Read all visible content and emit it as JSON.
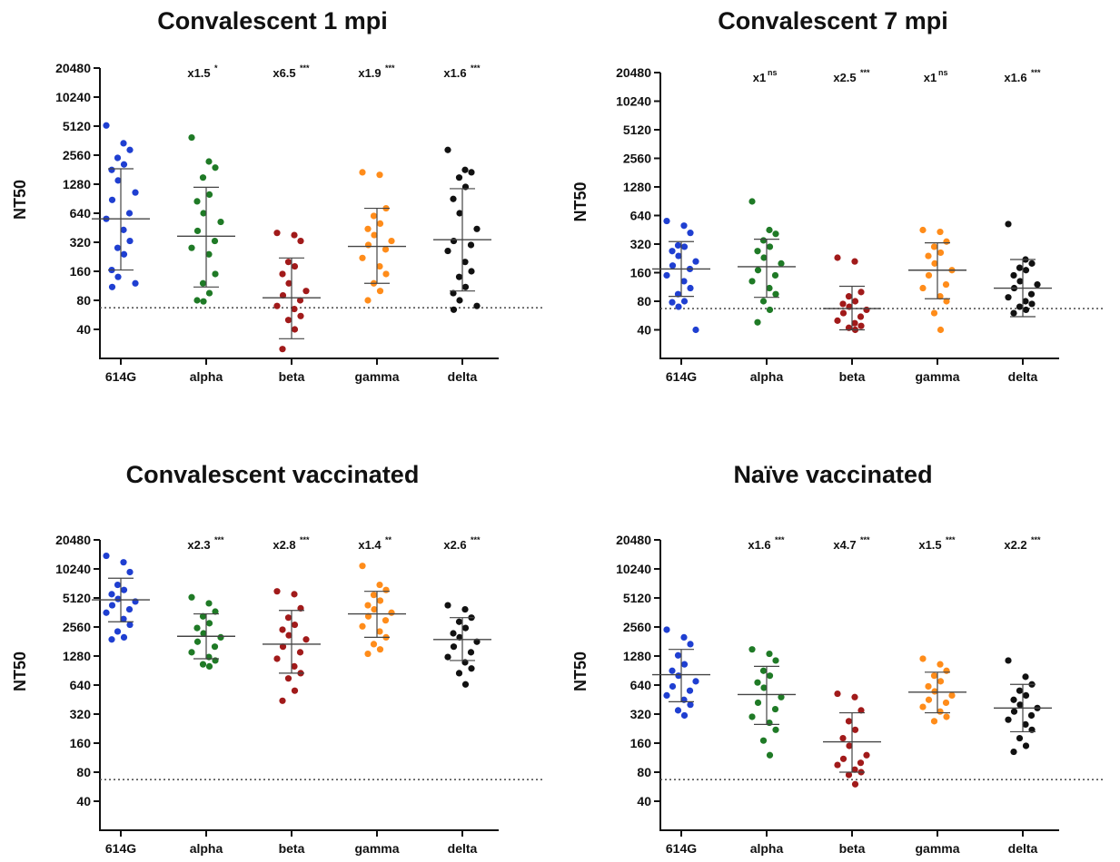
{
  "chart_data": [
    {
      "type": "scatter",
      "title": "Convalescent 1 mpi",
      "ylabel": "NT50",
      "yscale": "log2",
      "ylim": [
        20,
        20480
      ],
      "yticks": [
        "20480",
        "10240",
        "5120",
        "2560",
        "1280",
        "640",
        "320",
        "160",
        "80",
        "40"
      ],
      "categories": [
        "614G",
        "alpha",
        "beta",
        "gamma",
        "delta"
      ],
      "threshold": 67,
      "annotations": [
        {
          "category": "alpha",
          "fold": "x1.5",
          "sig": "*"
        },
        {
          "category": "beta",
          "fold": "x6.5",
          "sig": "***"
        },
        {
          "category": "gamma",
          "fold": "x1.9",
          "sig": "***"
        },
        {
          "category": "delta",
          "fold": "x1.6",
          "sig": "***"
        }
      ],
      "series": [
        {
          "name": "614G",
          "color": "#1f3fd1",
          "mean": 560,
          "sd_low": 165,
          "sd_high": 1850,
          "values": [
            5200,
            3400,
            2900,
            2400,
            2050,
            1800,
            1400,
            1050,
            880,
            640,
            560,
            430,
            330,
            280,
            240,
            165,
            140,
            120,
            110
          ]
        },
        {
          "name": "alpha",
          "color": "#1f7a26",
          "mean": 370,
          "sd_low": 110,
          "sd_high": 1190,
          "values": [
            3900,
            2200,
            1900,
            1500,
            1000,
            850,
            640,
            520,
            420,
            330,
            280,
            240,
            150,
            120,
            95,
            80,
            78
          ]
        },
        {
          "name": "beta",
          "color": "#a11a1a",
          "mean": 85,
          "sd_low": 32,
          "sd_high": 220,
          "values": [
            400,
            380,
            330,
            200,
            180,
            150,
            120,
            100,
            90,
            80,
            70,
            65,
            55,
            50,
            40,
            25
          ]
        },
        {
          "name": "gamma",
          "color": "#ff8c1a",
          "mean": 290,
          "sd_low": 120,
          "sd_high": 720,
          "values": [
            1700,
            1600,
            720,
            600,
            500,
            440,
            380,
            330,
            300,
            270,
            220,
            180,
            150,
            120,
            100,
            80
          ]
        },
        {
          "name": "delta",
          "color": "#111111",
          "mean": 340,
          "sd_low": 100,
          "sd_high": 1150,
          "values": [
            2900,
            1800,
            1700,
            1500,
            1200,
            900,
            640,
            440,
            330,
            300,
            260,
            200,
            160,
            140,
            110,
            95,
            80,
            70,
            64
          ]
        }
      ]
    },
    {
      "type": "scatter",
      "title": "Convalescent 7 mpi",
      "ylabel": "NT50",
      "yscale": "log2",
      "ylim": [
        20,
        20480
      ],
      "yticks": [
        "20480",
        "10240",
        "5120",
        "2560",
        "1280",
        "640",
        "320",
        "160",
        "80",
        "40"
      ],
      "categories": [
        "614G",
        "alpha",
        "beta",
        "gamma",
        "delta"
      ],
      "threshold": 67,
      "annotations": [
        {
          "category": "alpha",
          "fold": "x1",
          "sig": "ns"
        },
        {
          "category": "beta",
          "fold": "x2.5",
          "sig": "***"
        },
        {
          "category": "gamma",
          "fold": "x1",
          "sig": "ns"
        },
        {
          "category": "delta",
          "fold": "x1.6",
          "sig": "***"
        }
      ],
      "series": [
        {
          "name": "614G",
          "color": "#1f3fd1",
          "mean": 175,
          "sd_low": 90,
          "sd_high": 340,
          "values": [
            560,
            500,
            420,
            310,
            300,
            270,
            240,
            210,
            190,
            175,
            150,
            130,
            110,
            95,
            80,
            78,
            70,
            40
          ]
        },
        {
          "name": "alpha",
          "color": "#1f7a26",
          "mean": 185,
          "sd_low": 88,
          "sd_high": 360,
          "values": [
            900,
            450,
            410,
            350,
            300,
            270,
            230,
            200,
            170,
            150,
            130,
            110,
            95,
            80,
            65,
            48
          ]
        },
        {
          "name": "beta",
          "color": "#a11a1a",
          "mean": 67,
          "sd_low": 40,
          "sd_high": 115,
          "values": [
            230,
            210,
            100,
            90,
            80,
            75,
            70,
            65,
            60,
            55,
            50,
            47,
            44,
            42,
            40
          ]
        },
        {
          "name": "gamma",
          "color": "#ff8c1a",
          "mean": 170,
          "sd_low": 85,
          "sd_high": 330,
          "values": [
            450,
            430,
            340,
            300,
            260,
            240,
            200,
            170,
            150,
            120,
            110,
            90,
            80,
            60,
            40
          ]
        },
        {
          "name": "delta",
          "color": "#111111",
          "mean": 110,
          "sd_low": 55,
          "sd_high": 220,
          "values": [
            520,
            220,
            200,
            180,
            170,
            150,
            130,
            120,
            110,
            95,
            88,
            80,
            75,
            70,
            65,
            60
          ]
        }
      ]
    },
    {
      "type": "scatter",
      "title": "Convalescent vaccinated",
      "ylabel": "NT50",
      "yscale": "log2",
      "ylim": [
        20,
        20480
      ],
      "yticks": [
        "20480",
        "10240",
        "5120",
        "2560",
        "1280",
        "640",
        "320",
        "160",
        "80",
        "40"
      ],
      "categories": [
        "614G",
        "alpha",
        "beta",
        "gamma",
        "delta"
      ],
      "threshold": 67,
      "annotations": [
        {
          "category": "alpha",
          "fold": "x2.3",
          "sig": "***"
        },
        {
          "category": "beta",
          "fold": "x2.8",
          "sig": "***"
        },
        {
          "category": "gamma",
          "fold": "x1.4",
          "sig": "**"
        },
        {
          "category": "delta",
          "fold": "x2.6",
          "sig": "***"
        }
      ],
      "series": [
        {
          "name": "614G",
          "color": "#1f3fd1",
          "mean": 4900,
          "sd_low": 2900,
          "sd_high": 8200,
          "values": [
            14000,
            12000,
            9500,
            7000,
            6200,
            5600,
            5000,
            4700,
            4300,
            3900,
            3600,
            3100,
            2700,
            2300,
            2000,
            1900
          ]
        },
        {
          "name": "alpha",
          "color": "#1f7a26",
          "mean": 2050,
          "sd_low": 1200,
          "sd_high": 3500,
          "values": [
            5200,
            4500,
            3700,
            3300,
            2800,
            2500,
            2200,
            2000,
            1800,
            1600,
            1400,
            1250,
            1150,
            1050,
            1000
          ]
        },
        {
          "name": "beta",
          "color": "#a11a1a",
          "mean": 1700,
          "sd_low": 850,
          "sd_high": 3800,
          "values": [
            6000,
            5600,
            4000,
            3200,
            2700,
            2400,
            2100,
            1900,
            1600,
            1400,
            1200,
            1000,
            850,
            750,
            560,
            440
          ]
        },
        {
          "name": "gamma",
          "color": "#ff8c1a",
          "mean": 3500,
          "sd_low": 2000,
          "sd_high": 6000,
          "values": [
            11000,
            7000,
            6200,
            5500,
            4800,
            4300,
            3900,
            3600,
            3300,
            3000,
            2600,
            2300,
            2000,
            1700,
            1500,
            1350
          ]
        },
        {
          "name": "delta",
          "color": "#111111",
          "mean": 1900,
          "sd_low": 1150,
          "sd_high": 3200,
          "values": [
            4300,
            3900,
            3200,
            2900,
            2500,
            2200,
            2000,
            1800,
            1600,
            1400,
            1250,
            1100,
            950,
            850,
            650
          ]
        }
      ]
    },
    {
      "type": "scatter",
      "title": "Naïve vaccinated",
      "ylabel": "NT50",
      "yscale": "log2",
      "ylim": [
        20,
        20480
      ],
      "yticks": [
        "20480",
        "10240",
        "5120",
        "2560",
        "1280",
        "640",
        "320",
        "160",
        "80",
        "40"
      ],
      "categories": [
        "614G",
        "alpha",
        "beta",
        "gamma",
        "delta"
      ],
      "threshold": 67,
      "annotations": [
        {
          "category": "alpha",
          "fold": "x1.6",
          "sig": "***"
        },
        {
          "category": "beta",
          "fold": "x4.7",
          "sig": "***"
        },
        {
          "category": "gamma",
          "fold": "x1.5",
          "sig": "***"
        },
        {
          "category": "delta",
          "fold": "x2.2",
          "sig": "***"
        }
      ],
      "series": [
        {
          "name": "614G",
          "color": "#1f3fd1",
          "mean": 820,
          "sd_low": 430,
          "sd_high": 1500,
          "values": [
            2400,
            2000,
            1700,
            1300,
            1050,
            900,
            800,
            700,
            620,
            560,
            500,
            450,
            400,
            350,
            310
          ]
        },
        {
          "name": "alpha",
          "color": "#1f7a26",
          "mean": 510,
          "sd_low": 250,
          "sd_high": 1000,
          "values": [
            1500,
            1350,
            1150,
            900,
            800,
            680,
            600,
            480,
            420,
            360,
            300,
            260,
            220,
            170,
            120
          ]
        },
        {
          "name": "beta",
          "color": "#a11a1a",
          "mean": 165,
          "sd_low": 80,
          "sd_high": 330,
          "values": [
            520,
            480,
            350,
            270,
            220,
            180,
            150,
            120,
            110,
            100,
            95,
            85,
            80,
            75,
            60
          ]
        },
        {
          "name": "gamma",
          "color": "#ff8c1a",
          "mean": 540,
          "sd_low": 330,
          "sd_high": 870,
          "values": [
            1200,
            1050,
            900,
            800,
            700,
            620,
            550,
            500,
            450,
            420,
            380,
            340,
            300,
            270
          ]
        },
        {
          "name": "delta",
          "color": "#111111",
          "mean": 370,
          "sd_low": 210,
          "sd_high": 650,
          "values": [
            1150,
            780,
            650,
            560,
            500,
            450,
            400,
            370,
            340,
            310,
            280,
            250,
            220,
            180,
            150,
            130
          ]
        }
      ]
    }
  ]
}
